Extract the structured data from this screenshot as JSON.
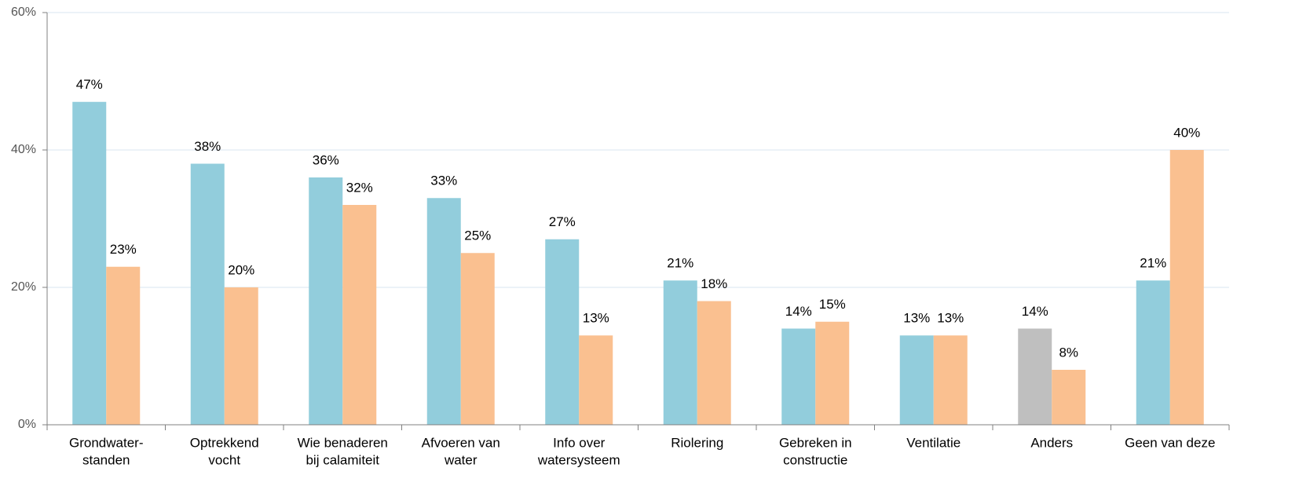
{
  "chart_data": {
    "type": "bar",
    "categories": [
      [
        "Grondwater-",
        "standen"
      ],
      [
        "Optrekkend",
        "vocht"
      ],
      [
        "Wie benaderen",
        "bij calamiteit"
      ],
      [
        "Afvoeren van",
        "water"
      ],
      [
        "Info over",
        "watersysteem"
      ],
      [
        "Riolering"
      ],
      [
        "Gebreken in",
        "constructie"
      ],
      [
        "Ventilatie"
      ],
      [
        "Anders"
      ],
      [
        "Geen van deze"
      ]
    ],
    "series": [
      {
        "colors": [
          "#92cddc",
          "#92cddc",
          "#92cddc",
          "#92cddc",
          "#92cddc",
          "#92cddc",
          "#92cddc",
          "#92cddc",
          "#bfbfbf",
          "#92cddc"
        ],
        "values": [
          47,
          38,
          36,
          33,
          27,
          21,
          14,
          13,
          14,
          21
        ],
        "value_labels": [
          "47%",
          "38%",
          "36%",
          "33%",
          "27%",
          "21%",
          "14%",
          "13%",
          "14%",
          "21%"
        ]
      },
      {
        "color": "#fac090",
        "values": [
          23,
          20,
          32,
          25,
          13,
          18,
          15,
          13,
          8,
          40
        ],
        "value_labels": [
          "23%",
          "20%",
          "32%",
          "25%",
          "13%",
          "18%",
          "15%",
          "13%",
          "8%",
          "40%"
        ]
      }
    ],
    "ylim": [
      0,
      60
    ],
    "yticks": [
      {
        "value": 0,
        "label": "0%"
      },
      {
        "value": 20,
        "label": "20%"
      },
      {
        "value": 40,
        "label": "40%"
      },
      {
        "value": 60,
        "label": "60%"
      }
    ],
    "grid": true
  }
}
